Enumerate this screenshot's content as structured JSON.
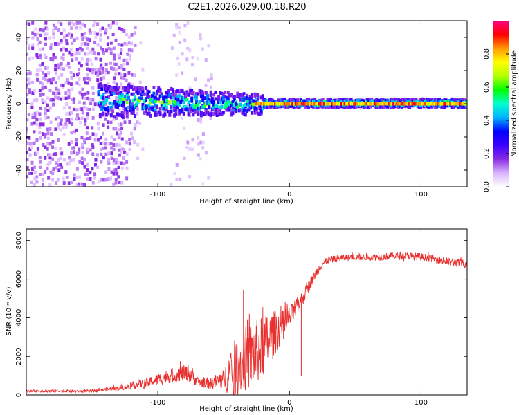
{
  "figure_title": "C2E1.2026.029.00.18.R20",
  "chart_data": [
    {
      "type": "heatmap",
      "xlabel": "Height of straight line (km)",
      "ylabel": "Frequency (Hz)",
      "xlim": [
        -200,
        135
      ],
      "ylim": [
        -50,
        50
      ],
      "x_ticks": [
        -100,
        0,
        100
      ],
      "y_ticks": [
        -40,
        -20,
        0,
        20,
        40
      ],
      "colorbar": {
        "label": "Normalized spectral amplitude",
        "range": [
          0,
          1
        ],
        "ticks": [
          0.0,
          0.2,
          0.4,
          0.6,
          0.8
        ],
        "tick_labels": [
          "0.0",
          "0.2",
          "0.4",
          "0.6",
          "0.8"
        ],
        "colors": [
          "#ffffff",
          "#d9b3ff",
          "#8a2be2",
          "#3a00ff",
          "#0000ff",
          "#00b3ff",
          "#00ffd0",
          "#00ff00",
          "#b5ff00",
          "#ffff00",
          "#ff9900",
          "#ff0000",
          "#ff0080"
        ]
      },
      "ridge": {
        "description": "dominant spectral line near 0 Hz",
        "x_start": -145,
        "x_end": 135,
        "noise_region_x": [
          -200,
          -125
        ],
        "secondary_scatter_x": [
          -90,
          -60
        ]
      }
    },
    {
      "type": "line",
      "xlabel": "Height of straight line (km)",
      "ylabel": "SNR (10 * v/v)",
      "xlim": [
        -200,
        135
      ],
      "ylim": [
        0,
        8600
      ],
      "x_ticks": [
        -100,
        0,
        100
      ],
      "y_ticks": [
        0,
        2000,
        4000,
        6000,
        8000
      ],
      "color": "#e8302f",
      "envelope": {
        "x": [
          -200,
          -150,
          -130,
          -110,
          -95,
          -85,
          -75,
          -70,
          -60,
          -50,
          -45,
          -35,
          -25,
          -20,
          -15,
          -10,
          -5,
          0,
          5,
          10,
          15,
          20,
          25,
          30,
          40,
          50,
          60,
          70,
          80,
          90,
          100,
          110,
          120,
          135
        ],
        "mean": [
          200,
          200,
          350,
          600,
          900,
          1100,
          1100,
          700,
          600,
          800,
          1200,
          1800,
          2200,
          2500,
          2900,
          3300,
          3600,
          4000,
          4500,
          5000,
          5700,
          6300,
          6800,
          7000,
          7100,
          7150,
          7150,
          7150,
          7200,
          7200,
          7150,
          7050,
          6900,
          6800
        ],
        "spread": [
          60,
          70,
          120,
          250,
          350,
          400,
          500,
          250,
          300,
          500,
          1300,
          1700,
          1700,
          1600,
          1400,
          1100,
          800,
          600,
          500,
          400,
          300,
          250,
          200,
          180,
          180,
          180,
          180,
          180,
          200,
          200,
          200,
          200,
          220,
          220
        ]
      },
      "spikes": [
        {
          "x": 8,
          "y": 8600
        },
        {
          "x": 9,
          "y": 1000
        },
        {
          "x": -83,
          "y": 1750
        },
        {
          "x": -35,
          "y": 5450
        }
      ]
    }
  ]
}
